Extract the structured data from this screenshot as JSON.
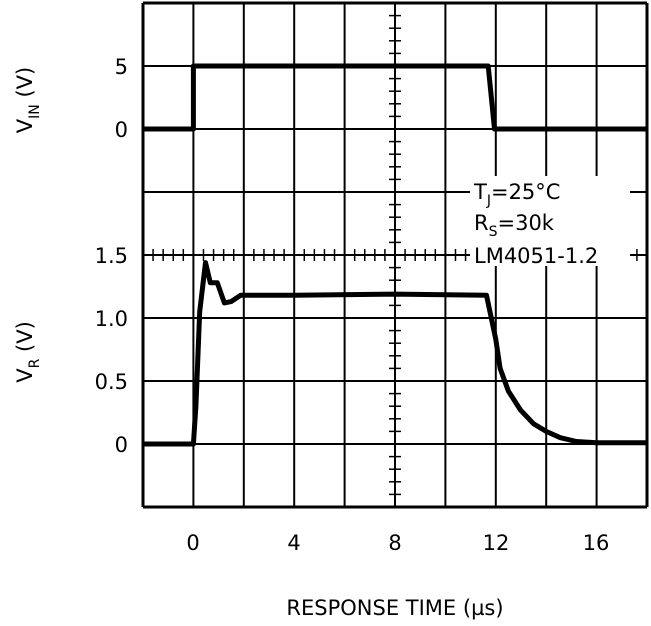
{
  "chart_data": [
    {
      "type": "line",
      "panel": "top",
      "ylabel": "V",
      "ylabel_sub": "IN",
      "ylabel_unit": " (V)",
      "ytick_labels": [
        "5",
        "0"
      ],
      "yticks": [
        5,
        0
      ],
      "xlim": [
        -2,
        18
      ],
      "ylim": [
        -10,
        10
      ],
      "grid": true,
      "series": [
        {
          "x": [
            -2,
            0,
            0,
            11.7,
            11.95,
            18
          ],
          "y": [
            0,
            0,
            5,
            5,
            0,
            0
          ]
        }
      ]
    },
    {
      "type": "line",
      "panel": "bottom",
      "ylabel": "V",
      "ylabel_sub": "R",
      "ylabel_unit": " (V)",
      "ytick_labels": [
        "1.5",
        "1.0",
        "0.5",
        "0"
      ],
      "yticks": [
        1.5,
        1.0,
        0.5,
        0
      ],
      "xlim": [
        -2,
        18
      ],
      "ylim": [
        -0.5,
        1.5
      ],
      "xticks": [
        0,
        4,
        8,
        12,
        16
      ],
      "xtick_labels": [
        "0",
        "4",
        "8",
        "12",
        "16"
      ],
      "xlabel": "RESPONSE TIME (",
      "xlabel_unit": "µs",
      "xlabel_close": ")",
      "grid": true,
      "series": [
        {
          "x": [
            -2,
            0,
            0.1,
            0.25,
            0.48,
            0.67,
            0.95,
            1.23,
            1.5,
            1.87,
            4,
            8,
            11.63,
            12.0,
            12.17,
            12.5,
            12.98,
            13.5,
            14.0,
            14.56,
            15.2,
            16,
            18
          ],
          "y": [
            0,
            0,
            0.3,
            1.05,
            1.44,
            1.28,
            1.28,
            1.12,
            1.13,
            1.18,
            1.18,
            1.19,
            1.18,
            0.83,
            0.6,
            0.42,
            0.27,
            0.16,
            0.1,
            0.05,
            0.02,
            0.01,
            0.01
          ]
        }
      ],
      "annotations": {
        "tj": "T",
        "tj_sub": "J",
        "tj_val": "=25°C",
        "rs": "R",
        "rs_sub": "S",
        "rs_val": "=30k",
        "part": "LM4051-1.2"
      }
    }
  ]
}
